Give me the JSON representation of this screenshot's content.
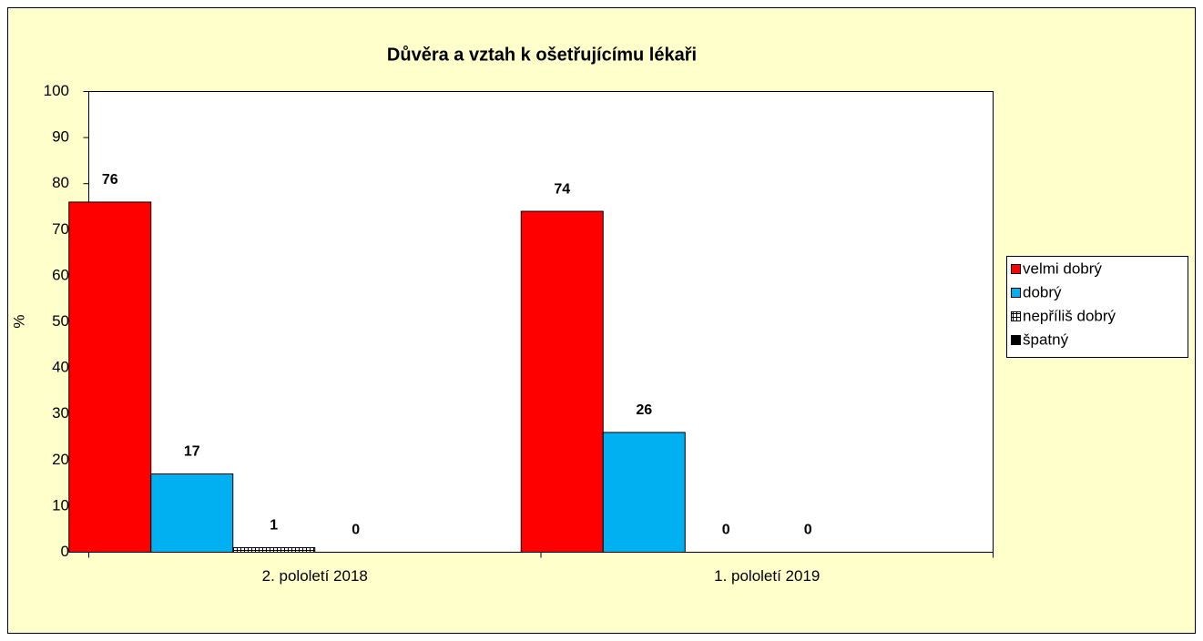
{
  "chart_data": {
    "type": "bar",
    "title": "Důvěra a vztah k ošetřujícímu lékaři",
    "y_label": "%",
    "categories": [
      "2. pololetí 2018",
      "1. pololetí 2019"
    ],
    "series": [
      {
        "name": "velmi dobrý",
        "color": "#ff0000",
        "values": [
          76,
          74
        ]
      },
      {
        "name": "dobrý",
        "color": "#00b0f0",
        "values": [
          17,
          26
        ]
      },
      {
        "name": "nepříliš dobrý",
        "color": "#000000",
        "pattern": "grid",
        "values": [
          1,
          0
        ]
      },
      {
        "name": "špatný",
        "color": "#000000",
        "values": [
          0,
          0
        ]
      }
    ],
    "ylim": [
      0,
      100
    ],
    "yticks": [
      0,
      10,
      20,
      30,
      40,
      50,
      60,
      70,
      80,
      90,
      100
    ],
    "legend": "right"
  }
}
